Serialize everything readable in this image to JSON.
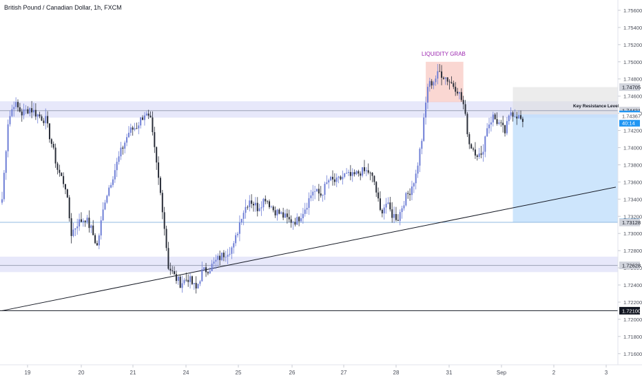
{
  "symbol_title": "British Pound / Canadian Dollar, 1h, FXCM",
  "colors": {
    "up": "#6f7fd6",
    "down": "#2a2e39",
    "zone": "#c9cdf5",
    "target": "#bcdcfb",
    "stop": "#dcdcdc",
    "liquidity": "#f8c9c3",
    "liquidity_text": "#9c27b0",
    "current_price_tag": "#2196f3",
    "line": "#131722"
  },
  "chart_data": {
    "type": "candlestick",
    "y_ticks": [
      "1.75600",
      "1.75400",
      "1.75200",
      "1.75000",
      "1.74800",
      "1.74600",
      "1.74400",
      "1.74200",
      "1.74000",
      "1.73800",
      "1.73600",
      "1.73400",
      "1.73200",
      "1.73000",
      "1.72800",
      "1.72600",
      "1.72400",
      "1.72200",
      "1.72000",
      "1.71800",
      "1.71600"
    ],
    "ylim": [
      1.7147,
      1.7572
    ],
    "x_labels": [
      "19",
      "20",
      "21",
      "24",
      "25",
      "26",
      "27",
      "28",
      "31",
      "Sep",
      "2",
      "3"
    ],
    "price_tags": [
      {
        "label": "1.74705",
        "value": 1.74705,
        "style": "gray"
      },
      {
        "label": "1.74431",
        "value": 1.74431,
        "style": "gray"
      },
      {
        "label": "1.74387",
        "value": 1.74387,
        "style": "blue"
      },
      {
        "label": "40:14",
        "value": 1.7429,
        "style": "blue"
      },
      {
        "label": "1.74367",
        "value": 1.74367,
        "style": "plain"
      },
      {
        "label": "1.73130",
        "value": 1.7313,
        "style": "blue"
      },
      {
        "label": "1.73128",
        "value": 1.73128,
        "style": "gray"
      },
      {
        "label": "1.72628",
        "value": 1.72628,
        "style": "gray"
      },
      {
        "label": "1.72100",
        "value": 1.721,
        "style": "dark"
      }
    ],
    "zones": [
      {
        "from": 1.7435,
        "to": 1.7454
      },
      {
        "from": 1.7255,
        "to": 1.7273
      }
    ],
    "hlines": [
      {
        "value": 1.74431,
        "color": "#9aa0b4"
      },
      {
        "value": 1.7313,
        "color": "#8fb8e0"
      },
      {
        "value": 1.72628,
        "color": "#9aa0b4"
      },
      {
        "value": 1.721,
        "color": "#131722"
      }
    ],
    "trendline": {
      "from": {
        "bar": 0,
        "price": 1.721
      },
      "to": {
        "bar": 310,
        "price": 1.7354
      }
    },
    "annotations": [
      {
        "text": "LIQUIDITY GRAB",
        "bar": 223,
        "price": 1.7507
      },
      {
        "text": "Key Resistance Level",
        "bar": 300,
        "price": 1.7447
      }
    ],
    "liquidity_box": {
      "bar_from": 214,
      "bar_to": 233,
      "price_from": 1.7453,
      "price_to": 1.75
    },
    "position": {
      "bar_from": 258,
      "bar_to": 310,
      "entry": 1.74387,
      "stop": 1.74705,
      "target": 1.7313
    },
    "waypoints": [
      [
        0,
        1.734
      ],
      [
        3,
        1.743
      ],
      [
        6,
        1.7452
      ],
      [
        10,
        1.744
      ],
      [
        14,
        1.7446
      ],
      [
        18,
        1.7438
      ],
      [
        22,
        1.7432
      ],
      [
        25,
        1.7405
      ],
      [
        28,
        1.7375
      ],
      [
        32,
        1.7355
      ],
      [
        35,
        1.73
      ],
      [
        38,
        1.7312
      ],
      [
        42,
        1.7318
      ],
      [
        45,
        1.7305
      ],
      [
        48,
        1.7285
      ],
      [
        52,
        1.734
      ],
      [
        56,
        1.7368
      ],
      [
        60,
        1.7395
      ],
      [
        64,
        1.7418
      ],
      [
        68,
        1.7425
      ],
      [
        72,
        1.744
      ],
      [
        75,
        1.743
      ],
      [
        78,
        1.738
      ],
      [
        81,
        1.733
      ],
      [
        84,
        1.7262
      ],
      [
        87,
        1.725
      ],
      [
        90,
        1.7242
      ],
      [
        94,
        1.7248
      ],
      [
        98,
        1.7235
      ],
      [
        101,
        1.7255
      ],
      [
        105,
        1.726
      ],
      [
        109,
        1.727
      ],
      [
        113,
        1.7278
      ],
      [
        117,
        1.7285
      ],
      [
        121,
        1.7322
      ],
      [
        125,
        1.734
      ],
      [
        129,
        1.733
      ],
      [
        133,
        1.7342
      ],
      [
        137,
        1.7328
      ],
      [
        141,
        1.7322
      ],
      [
        145,
        1.7315
      ],
      [
        149,
        1.7315
      ],
      [
        153,
        1.733
      ],
      [
        157,
        1.735
      ],
      [
        161,
        1.7345
      ],
      [
        165,
        1.7362
      ],
      [
        169,
        1.736
      ],
      [
        173,
        1.7368
      ],
      [
        177,
        1.7366
      ],
      [
        181,
        1.7372
      ],
      [
        185,
        1.7372
      ],
      [
        188,
        1.736
      ],
      [
        191,
        1.7325
      ],
      [
        194,
        1.7335
      ],
      [
        197,
        1.7322
      ],
      [
        200,
        1.7318
      ],
      [
        203,
        1.7338
      ],
      [
        206,
        1.735
      ],
      [
        209,
        1.7368
      ],
      [
        212,
        1.741
      ],
      [
        215,
        1.7472
      ],
      [
        218,
        1.7478
      ],
      [
        221,
        1.7488
      ],
      [
        224,
        1.7482
      ],
      [
        227,
        1.7475
      ],
      [
        230,
        1.7468
      ],
      [
        233,
        1.745
      ],
      [
        236,
        1.7405
      ],
      [
        239,
        1.7396
      ],
      [
        242,
        1.7388
      ],
      [
        245,
        1.7425
      ],
      [
        248,
        1.7436
      ],
      [
        251,
        1.7428
      ],
      [
        254,
        1.7418
      ],
      [
        257,
        1.7442
      ],
      [
        260,
        1.7438
      ],
      [
        263,
        1.743
      ]
    ]
  }
}
